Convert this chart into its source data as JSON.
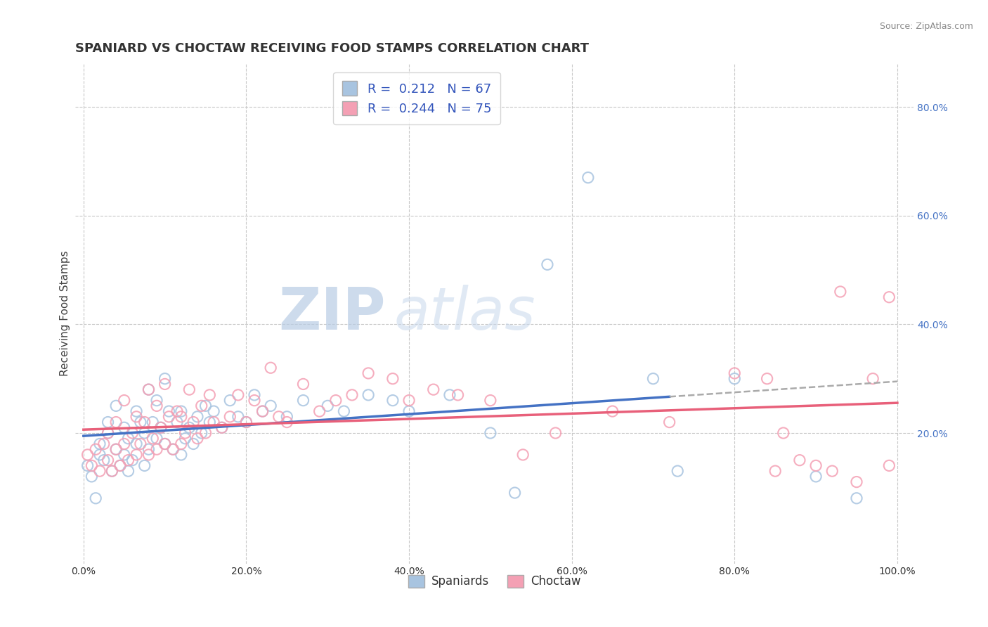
{
  "title": "SPANIARD VS CHOCTAW RECEIVING FOOD STAMPS CORRELATION CHART",
  "source": "Source: ZipAtlas.com",
  "ylabel": "Receiving Food Stamps",
  "xlabel": "",
  "xlim": [
    -0.01,
    1.02
  ],
  "ylim": [
    -0.04,
    0.88
  ],
  "xticks": [
    0.0,
    0.2,
    0.4,
    0.6,
    0.8,
    1.0
  ],
  "yticks_right": [
    0.2,
    0.4,
    0.6,
    0.8
  ],
  "background_color": "#ffffff",
  "grid_color": "#c8c8c8",
  "watermark_zip": "ZIP",
  "watermark_atlas": "atlas",
  "spaniard_R": 0.212,
  "spaniard_N": 67,
  "choctaw_R": 0.244,
  "choctaw_N": 75,
  "spaniard_color": "#a8c4e0",
  "choctaw_color": "#f4a0b4",
  "spaniard_line_color": "#4472c4",
  "choctaw_line_color": "#e8607a",
  "spaniard_line_end": 0.72,
  "spaniard_scatter_x": [
    0.005,
    0.01,
    0.015,
    0.02,
    0.02,
    0.025,
    0.03,
    0.03,
    0.035,
    0.04,
    0.04,
    0.045,
    0.05,
    0.05,
    0.055,
    0.055,
    0.06,
    0.065,
    0.065,
    0.07,
    0.075,
    0.075,
    0.08,
    0.08,
    0.085,
    0.09,
    0.09,
    0.095,
    0.1,
    0.1,
    0.105,
    0.11,
    0.115,
    0.12,
    0.12,
    0.125,
    0.13,
    0.135,
    0.14,
    0.145,
    0.15,
    0.155,
    0.16,
    0.17,
    0.18,
    0.19,
    0.2,
    0.21,
    0.22,
    0.23,
    0.25,
    0.27,
    0.3,
    0.32,
    0.35,
    0.38,
    0.4,
    0.45,
    0.5,
    0.53,
    0.57,
    0.62,
    0.7,
    0.73,
    0.8,
    0.9,
    0.95
  ],
  "spaniard_scatter_y": [
    0.14,
    0.12,
    0.08,
    0.16,
    0.18,
    0.15,
    0.2,
    0.22,
    0.13,
    0.17,
    0.25,
    0.14,
    0.16,
    0.21,
    0.13,
    0.19,
    0.15,
    0.18,
    0.24,
    0.22,
    0.14,
    0.2,
    0.17,
    0.28,
    0.22,
    0.19,
    0.26,
    0.21,
    0.18,
    0.3,
    0.24,
    0.17,
    0.22,
    0.16,
    0.24,
    0.19,
    0.21,
    0.18,
    0.23,
    0.2,
    0.25,
    0.22,
    0.24,
    0.21,
    0.26,
    0.23,
    0.22,
    0.27,
    0.24,
    0.25,
    0.23,
    0.26,
    0.25,
    0.24,
    0.27,
    0.26,
    0.24,
    0.27,
    0.2,
    0.09,
    0.51,
    0.67,
    0.3,
    0.13,
    0.3,
    0.12,
    0.08
  ],
  "choctaw_scatter_x": [
    0.005,
    0.01,
    0.015,
    0.02,
    0.025,
    0.03,
    0.03,
    0.035,
    0.04,
    0.04,
    0.045,
    0.05,
    0.05,
    0.055,
    0.06,
    0.065,
    0.065,
    0.07,
    0.075,
    0.08,
    0.08,
    0.085,
    0.09,
    0.09,
    0.095,
    0.1,
    0.1,
    0.105,
    0.11,
    0.115,
    0.12,
    0.12,
    0.125,
    0.13,
    0.135,
    0.14,
    0.145,
    0.15,
    0.155,
    0.16,
    0.17,
    0.18,
    0.19,
    0.2,
    0.21,
    0.22,
    0.23,
    0.24,
    0.25,
    0.27,
    0.29,
    0.31,
    0.33,
    0.35,
    0.38,
    0.4,
    0.43,
    0.46,
    0.5,
    0.54,
    0.58,
    0.65,
    0.72,
    0.8,
    0.84,
    0.85,
    0.86,
    0.88,
    0.9,
    0.92,
    0.93,
    0.95,
    0.97,
    0.99,
    0.99
  ],
  "choctaw_scatter_y": [
    0.16,
    0.14,
    0.17,
    0.13,
    0.18,
    0.15,
    0.2,
    0.13,
    0.17,
    0.22,
    0.14,
    0.18,
    0.26,
    0.15,
    0.2,
    0.16,
    0.23,
    0.18,
    0.22,
    0.16,
    0.28,
    0.19,
    0.17,
    0.25,
    0.21,
    0.18,
    0.29,
    0.23,
    0.17,
    0.24,
    0.18,
    0.23,
    0.2,
    0.28,
    0.22,
    0.19,
    0.25,
    0.2,
    0.27,
    0.22,
    0.21,
    0.23,
    0.27,
    0.22,
    0.26,
    0.24,
    0.32,
    0.23,
    0.22,
    0.29,
    0.24,
    0.26,
    0.27,
    0.31,
    0.3,
    0.26,
    0.28,
    0.27,
    0.26,
    0.16,
    0.2,
    0.24,
    0.22,
    0.31,
    0.3,
    0.13,
    0.2,
    0.15,
    0.14,
    0.13,
    0.46,
    0.11,
    0.3,
    0.14,
    0.45
  ]
}
